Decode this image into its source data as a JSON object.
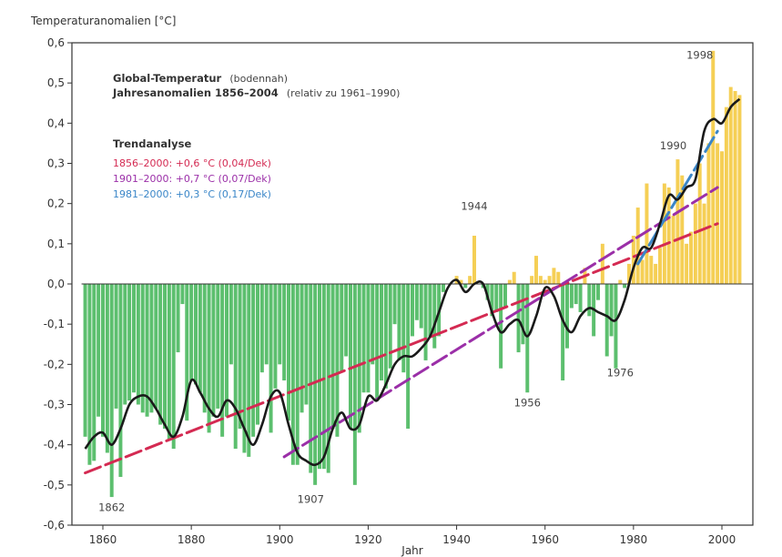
{
  "chart_data": {
    "type": "bar",
    "ylabel": "Temperaturanomalien [°C]",
    "xlabel": "Jahr",
    "title": "Global-Temperatur",
    "title_suffix": "(bodennah)",
    "subtitle": "Jahresanomalien 1856–2004",
    "subtitle_suffix": "(relativ zu 1961–1990)",
    "ylim": [
      -0.6,
      0.6
    ],
    "xlim": [
      1853,
      2007
    ],
    "y_ticks": [
      "-0,6",
      "-0,5",
      "-0,4",
      "-0,3",
      "-0,2",
      "-0,1",
      "0,0",
      "0,1",
      "0,2",
      "0,3",
      "0,4",
      "0,5",
      "0,6"
    ],
    "x_ticks": [
      "1860",
      "1880",
      "1900",
      "1920",
      "1940",
      "1960",
      "1980",
      "2000"
    ],
    "x_tick_values": [
      1860,
      1880,
      1900,
      1920,
      1940,
      1960,
      1980,
      2000
    ],
    "y_tick_values": [
      -0.6,
      -0.5,
      -0.4,
      -0.3,
      -0.2,
      -0.1,
      0,
      0.1,
      0.2,
      0.3,
      0.4,
      0.5,
      0.6
    ],
    "colors": {
      "negative": "#5cbf6e",
      "positive": "#f5cf55",
      "smooth": "#1a1a1a",
      "trend1": "#d42a52",
      "trend2": "#9b2fa8",
      "trend3": "#3a86c8",
      "axis": "#333333"
    },
    "series": [
      {
        "name": "Jahresanomalien",
        "x": [
          1856,
          1857,
          1858,
          1859,
          1860,
          1861,
          1862,
          1863,
          1864,
          1865,
          1866,
          1867,
          1868,
          1869,
          1870,
          1871,
          1872,
          1873,
          1874,
          1875,
          1876,
          1877,
          1878,
          1879,
          1880,
          1881,
          1882,
          1883,
          1884,
          1885,
          1886,
          1887,
          1888,
          1889,
          1890,
          1891,
          1892,
          1893,
          1894,
          1895,
          1896,
          1897,
          1898,
          1899,
          1900,
          1901,
          1902,
          1903,
          1904,
          1905,
          1906,
          1907,
          1908,
          1909,
          1910,
          1911,
          1912,
          1913,
          1914,
          1915,
          1916,
          1917,
          1918,
          1919,
          1920,
          1921,
          1922,
          1923,
          1924,
          1925,
          1926,
          1927,
          1928,
          1929,
          1930,
          1931,
          1932,
          1933,
          1934,
          1935,
          1936,
          1937,
          1938,
          1939,
          1940,
          1941,
          1942,
          1943,
          1944,
          1945,
          1946,
          1947,
          1948,
          1949,
          1950,
          1951,
          1952,
          1953,
          1954,
          1955,
          1956,
          1957,
          1958,
          1959,
          1960,
          1961,
          1962,
          1963,
          1964,
          1965,
          1966,
          1967,
          1968,
          1969,
          1970,
          1971,
          1972,
          1973,
          1974,
          1975,
          1976,
          1977,
          1978,
          1979,
          1980,
          1981,
          1982,
          1983,
          1984,
          1985,
          1986,
          1987,
          1988,
          1989,
          1990,
          1991,
          1992,
          1993,
          1994,
          1995,
          1996,
          1997,
          1998,
          1999,
          2000,
          2001,
          2002,
          2003,
          2004
        ],
        "values": [
          -0.38,
          -0.45,
          -0.44,
          -0.33,
          -0.38,
          -0.42,
          -0.53,
          -0.31,
          -0.48,
          -0.3,
          -0.29,
          -0.27,
          -0.3,
          -0.32,
          -0.33,
          -0.32,
          -0.31,
          -0.35,
          -0.36,
          -0.39,
          -0.41,
          -0.17,
          -0.05,
          -0.34,
          -0.24,
          -0.25,
          -0.27,
          -0.32,
          -0.37,
          -0.33,
          -0.31,
          -0.38,
          -0.33,
          -0.2,
          -0.41,
          -0.36,
          -0.42,
          -0.43,
          -0.38,
          -0.35,
          -0.22,
          -0.2,
          -0.37,
          -0.26,
          -0.2,
          -0.24,
          -0.34,
          -0.45,
          -0.45,
          -0.32,
          -0.3,
          -0.47,
          -0.5,
          -0.46,
          -0.46,
          -0.47,
          -0.36,
          -0.38,
          -0.22,
          -0.18,
          -0.36,
          -0.5,
          -0.37,
          -0.27,
          -0.27,
          -0.2,
          -0.29,
          -0.24,
          -0.26,
          -0.21,
          -0.1,
          -0.19,
          -0.22,
          -0.36,
          -0.13,
          -0.09,
          -0.11,
          -0.19,
          -0.13,
          -0.16,
          -0.13,
          -0.02,
          0.0,
          0.0,
          0.02,
          0.01,
          -0.01,
          0.02,
          0.12,
          0.0,
          -0.01,
          -0.04,
          -0.08,
          -0.07,
          -0.21,
          -0.06,
          0.01,
          0.03,
          -0.17,
          -0.15,
          -0.27,
          0.02,
          0.07,
          0.02,
          0.01,
          0.02,
          0.04,
          0.03,
          -0.24,
          -0.16,
          -0.06,
          -0.05,
          -0.07,
          0.04,
          -0.08,
          -0.13,
          -0.04,
          0.1,
          -0.18,
          -0.13,
          -0.21,
          0.01,
          -0.01,
          0.05,
          0.12,
          0.19,
          0.06,
          0.25,
          0.07,
          0.05,
          0.09,
          0.25,
          0.24,
          0.17,
          0.31,
          0.27,
          0.1,
          0.13,
          0.2,
          0.3,
          0.2,
          0.35,
          0.58,
          0.35,
          0.33,
          0.44,
          0.49,
          0.48,
          0.47
        ]
      }
    ],
    "smooth": {
      "name": "Glättung",
      "x": [
        1856,
        1858,
        1860,
        1862,
        1864,
        1866,
        1868,
        1870,
        1872,
        1874,
        1876,
        1878,
        1880,
        1882,
        1884,
        1886,
        1888,
        1890,
        1892,
        1894,
        1896,
        1898,
        1900,
        1902,
        1904,
        1906,
        1908,
        1910,
        1912,
        1914,
        1916,
        1918,
        1920,
        1922,
        1924,
        1926,
        1928,
        1930,
        1932,
        1934,
        1936,
        1938,
        1940,
        1942,
        1944,
        1946,
        1948,
        1950,
        1952,
        1954,
        1956,
        1958,
        1960,
        1962,
        1964,
        1966,
        1968,
        1970,
        1972,
        1974,
        1976,
        1978,
        1980,
        1982,
        1984,
        1986,
        1988,
        1990,
        1992,
        1994,
        1996,
        1998,
        2000,
        2002,
        2004
      ],
      "values": [
        -0.41,
        -0.38,
        -0.37,
        -0.4,
        -0.36,
        -0.3,
        -0.28,
        -0.28,
        -0.31,
        -0.35,
        -0.38,
        -0.33,
        -0.24,
        -0.27,
        -0.31,
        -0.33,
        -0.29,
        -0.31,
        -0.36,
        -0.4,
        -0.35,
        -0.28,
        -0.27,
        -0.35,
        -0.42,
        -0.44,
        -0.45,
        -0.43,
        -0.36,
        -0.32,
        -0.36,
        -0.35,
        -0.28,
        -0.29,
        -0.25,
        -0.2,
        -0.18,
        -0.18,
        -0.16,
        -0.13,
        -0.07,
        -0.01,
        0.01,
        -0.02,
        0.0,
        0.0,
        -0.07,
        -0.12,
        -0.1,
        -0.09,
        -0.13,
        -0.08,
        -0.01,
        -0.03,
        -0.09,
        -0.12,
        -0.08,
        -0.06,
        -0.07,
        -0.08,
        -0.09,
        -0.04,
        0.04,
        0.09,
        0.09,
        0.15,
        0.22,
        0.21,
        0.24,
        0.26,
        0.38,
        0.41,
        0.4,
        0.44,
        0.46
      ]
    },
    "trend_title": "Trendanalyse",
    "trends": [
      {
        "label": "1856–2000:   +0,6 °C (0,04/Dek)",
        "x0": 1856,
        "y0": -0.47,
        "x1": 1999,
        "y1": 0.15,
        "color_key": "trend1"
      },
      {
        "label": "1901–2000:   +0,7 °C (0,07/Dek)",
        "x0": 1901,
        "y0": -0.43,
        "x1": 1999,
        "y1": 0.24,
        "color_key": "trend2"
      },
      {
        "label": "1981–2000:   +0,3 °C (0,17/Dek)",
        "x0": 1981,
        "y0": 0.05,
        "x1": 1999,
        "y1": 0.38,
        "color_key": "trend3"
      }
    ],
    "annotations": [
      {
        "text": "1862",
        "x": 1862,
        "y": -0.565
      },
      {
        "text": "1907",
        "x": 1907,
        "y": -0.545
      },
      {
        "text": "1944",
        "x": 1944,
        "y": 0.185
      },
      {
        "text": "1956",
        "x": 1956,
        "y": -0.305
      },
      {
        "text": "1976",
        "x": 1977,
        "y": -0.23
      },
      {
        "text": "1990",
        "x": 1989,
        "y": 0.335
      },
      {
        "text": "1998",
        "x": 1995,
        "y": 0.56
      }
    ],
    "legend_placement": "top-left",
    "grid": false
  }
}
